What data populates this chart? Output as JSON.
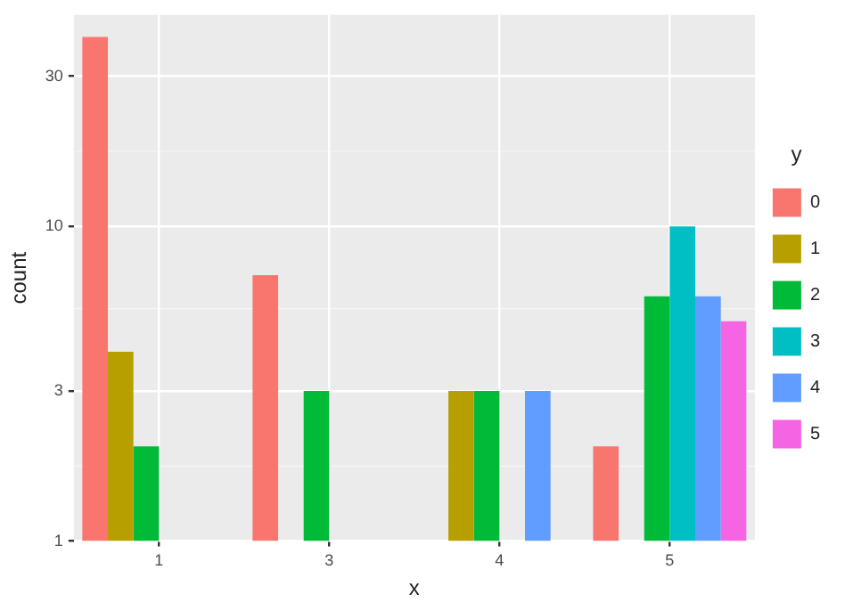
{
  "chart_data": {
    "type": "bar",
    "xlabel": "x",
    "ylabel": "count",
    "legend_title": "y",
    "categories": [
      "1",
      "3",
      "4",
      "5"
    ],
    "series": [
      {
        "name": "0",
        "color": "#f8766d",
        "values": [
          40,
          7,
          null,
          2
        ]
      },
      {
        "name": "1",
        "color": "#b79f00",
        "values": [
          4,
          null,
          3,
          null
        ]
      },
      {
        "name": "2",
        "color": "#00ba38",
        "values": [
          2,
          3,
          3,
          6
        ]
      },
      {
        "name": "3",
        "color": "#00bfc4",
        "values": [
          null,
          null,
          null,
          10
        ]
      },
      {
        "name": "4",
        "color": "#619cff",
        "values": [
          null,
          null,
          3,
          6
        ]
      },
      {
        "name": "5",
        "color": "#f564e3",
        "values": [
          null,
          null,
          null,
          5
        ]
      }
    ],
    "log": "y",
    "ylim": [
      1,
      47
    ],
    "yticks": [
      1,
      3,
      10,
      30
    ],
    "grid": true,
    "legend": "right"
  }
}
